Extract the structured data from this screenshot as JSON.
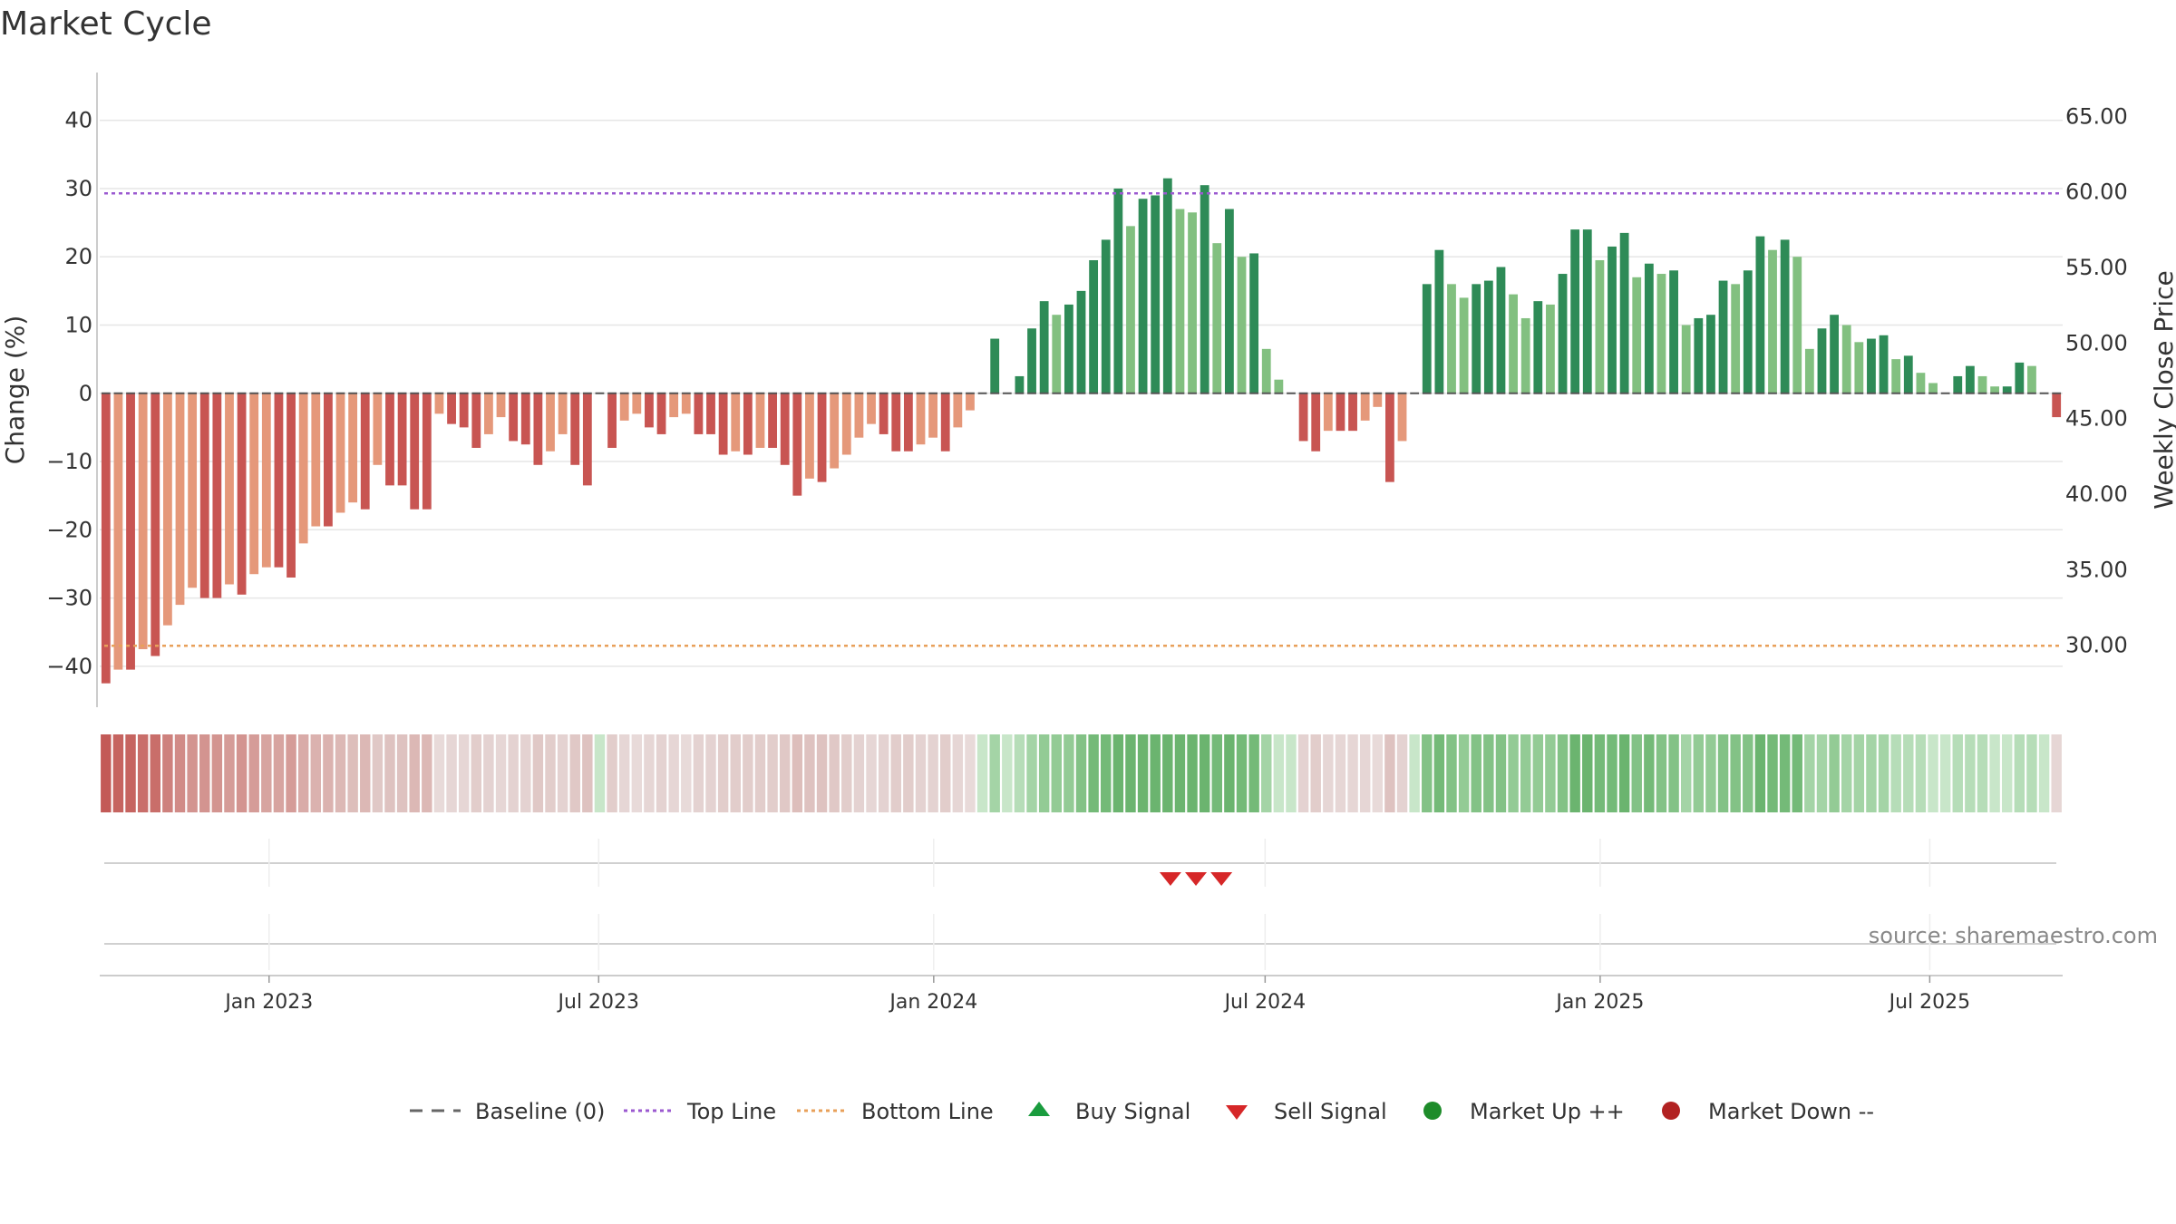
{
  "chart_data": {
    "type": "bar",
    "title": "Market Cycle",
    "ylabel": "Change (%)",
    "y2label": "Weekly Close Price",
    "ylim": [
      -46,
      47
    ],
    "y2lim": [
      25.9,
      67.9
    ],
    "yticks": [
      40,
      30,
      20,
      10,
      0,
      -10,
      -20,
      -30,
      -40
    ],
    "ytick_labels": [
      "40",
      "30",
      "20",
      "10",
      "0",
      "−10",
      "−20",
      "−30",
      "−40"
    ],
    "y2ticks": [
      65,
      60,
      55,
      50,
      45,
      40,
      35,
      30
    ],
    "y2tick_labels": [
      "65.00",
      "60.00",
      "55.00",
      "50.00",
      "45.00",
      "40.00",
      "35.00",
      "30.00"
    ],
    "top_line": 29.3,
    "bottom_line": -37.0,
    "baseline": 0,
    "x_start": "2022-09-30",
    "x_end": "2025-09-12",
    "xticks": [
      {
        "date": "2023-01-01",
        "label": "Jan 2023"
      },
      {
        "date": "2023-07-01",
        "label": "Jul 2023"
      },
      {
        "date": "2024-01-01",
        "label": "Jan 2024"
      },
      {
        "date": "2024-07-01",
        "label": "Jul 2024"
      },
      {
        "date": "2025-01-01",
        "label": "Jan 2025"
      },
      {
        "date": "2025-07-01",
        "label": "Jul 2025"
      }
    ],
    "grid": true,
    "legend_position": "bottom",
    "values": [
      -42.5,
      -40.5,
      -40.5,
      -37.5,
      -38.5,
      -34,
      -31,
      -28.5,
      -30,
      -30,
      -28,
      -29.5,
      -26.5,
      -25.5,
      -25.5,
      -27,
      -22,
      -19.5,
      -19.5,
      -17.5,
      -16,
      -17,
      -10.5,
      -13.5,
      -13.5,
      -17,
      -17,
      -3,
      -4.5,
      -5,
      -8,
      -6,
      -3.5,
      -7,
      -7.5,
      -10.5,
      -8.5,
      -6,
      -10.5,
      -13.5,
      0,
      -8,
      -4,
      -3,
      -5,
      -6,
      -3.5,
      -3,
      -6,
      -6,
      -9,
      -8.5,
      -9,
      -8,
      -8,
      -10.5,
      -15,
      -12.5,
      -13,
      -11,
      -9,
      -6.5,
      -4.5,
      -6,
      -8.5,
      -8.5,
      -7.5,
      -6.5,
      -8.5,
      -5,
      -2.5,
      0,
      8,
      0,
      2.5,
      9.5,
      13.5,
      11.5,
      13,
      15,
      19.5,
      22.5,
      30,
      24.5,
      28.5,
      29,
      31.5,
      27,
      26.5,
      30.5,
      22,
      27,
      20,
      20.5,
      6.5,
      2,
      0,
      -7,
      -8.5,
      -5.5,
      -5.5,
      -5.5,
      -4,
      -2,
      -13,
      -7,
      0,
      16,
      21,
      16,
      14,
      16,
      16.5,
      18.5,
      14.5,
      11,
      13.5,
      13,
      17.5,
      24,
      24,
      19.5,
      21.5,
      23.5,
      17,
      19,
      17.5,
      18,
      10,
      11,
      11.5,
      16.5,
      16,
      18,
      23,
      21,
      22.5,
      20,
      6.5,
      9.5,
      11.5,
      10,
      7.5,
      8,
      8.5,
      5,
      5.5,
      3,
      1.5,
      0,
      2.5,
      4,
      2.5,
      1,
      1,
      4.5,
      4,
      0,
      -3.5
    ],
    "strip_colors": [
      "#c0504d",
      "#c35a57",
      "#c66460",
      "#c96e6a",
      "#cb7773",
      "#ce817d",
      "#d18b87",
      "#d39490",
      "#d59c98",
      "#d7a4a0",
      "#d9aba8",
      "#dbb2af",
      "#dcb8b5",
      "#ddbebb",
      "#dec2c0",
      "#e0c8c6",
      "#e2cdcb",
      "#e4d2d1",
      "#e6d6d5",
      "#e8dad9",
      "#eadfde",
      "#c8e6c9",
      "#b6ddb8",
      "#a4d4a6",
      "#93cb95",
      "#83c286",
      "#74ba78",
      "#6bb46f",
      "#78bd7c",
      "#88c68b",
      "#98ce9b",
      "#a9d6ab",
      "#bbdfbc",
      "#cce7cd"
    ],
    "sell_signals": [
      "2024-05-10",
      "2024-05-24",
      "2024-06-07"
    ],
    "buy_signals": [],
    "legend": [
      "Baseline (0)",
      "Top Line",
      "Bottom Line",
      "Buy Signal",
      "Sell Signal",
      "Market Up ++",
      "Market Down --"
    ],
    "colors": {
      "neg_dark": "#c85552",
      "neg_light": "#e5987a",
      "pos_dark": "#2e8b57",
      "pos_light": "#82c080",
      "top_line": "#9b59d0",
      "bottom_line": "#e8a05a",
      "sell": "#d62728",
      "buy": "#1a9c3e",
      "market_up": "#1e8c2a",
      "market_down": "#b22222"
    }
  },
  "source_text": "source: sharemaestro.com"
}
